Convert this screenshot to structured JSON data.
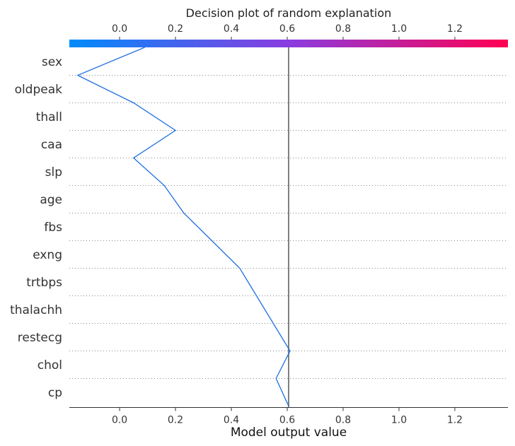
{
  "chart_data": {
    "type": "line",
    "title": "Decision plot of random explanation",
    "xlabel": "Model output value",
    "ylabel": "",
    "xlim": [
      -0.18,
      1.39
    ],
    "x_ticks": [
      "0.0",
      "0.2",
      "0.4",
      "0.6",
      "0.8",
      "1.0",
      "1.2"
    ],
    "x_tick_values": [
      0.0,
      0.2,
      0.4,
      0.6,
      0.8,
      1.0,
      1.2
    ],
    "base_value": 0.605,
    "colorbar": {
      "from": "#008bfb",
      "to": "#ff0052"
    },
    "features": [
      "sex",
      "oldpeak",
      "thall",
      "caa",
      "slp",
      "age",
      "fbs",
      "exng",
      "trtbps",
      "thalachh",
      "restecg",
      "chol",
      "cp"
    ],
    "cumulative_output": [
      0.09,
      -0.15,
      0.05,
      0.2,
      0.05,
      0.16,
      0.23,
      0.33,
      0.43,
      0.49,
      0.55,
      0.61,
      0.56,
      0.605
    ],
    "grid": true,
    "line_color": "#1e6fe0"
  }
}
